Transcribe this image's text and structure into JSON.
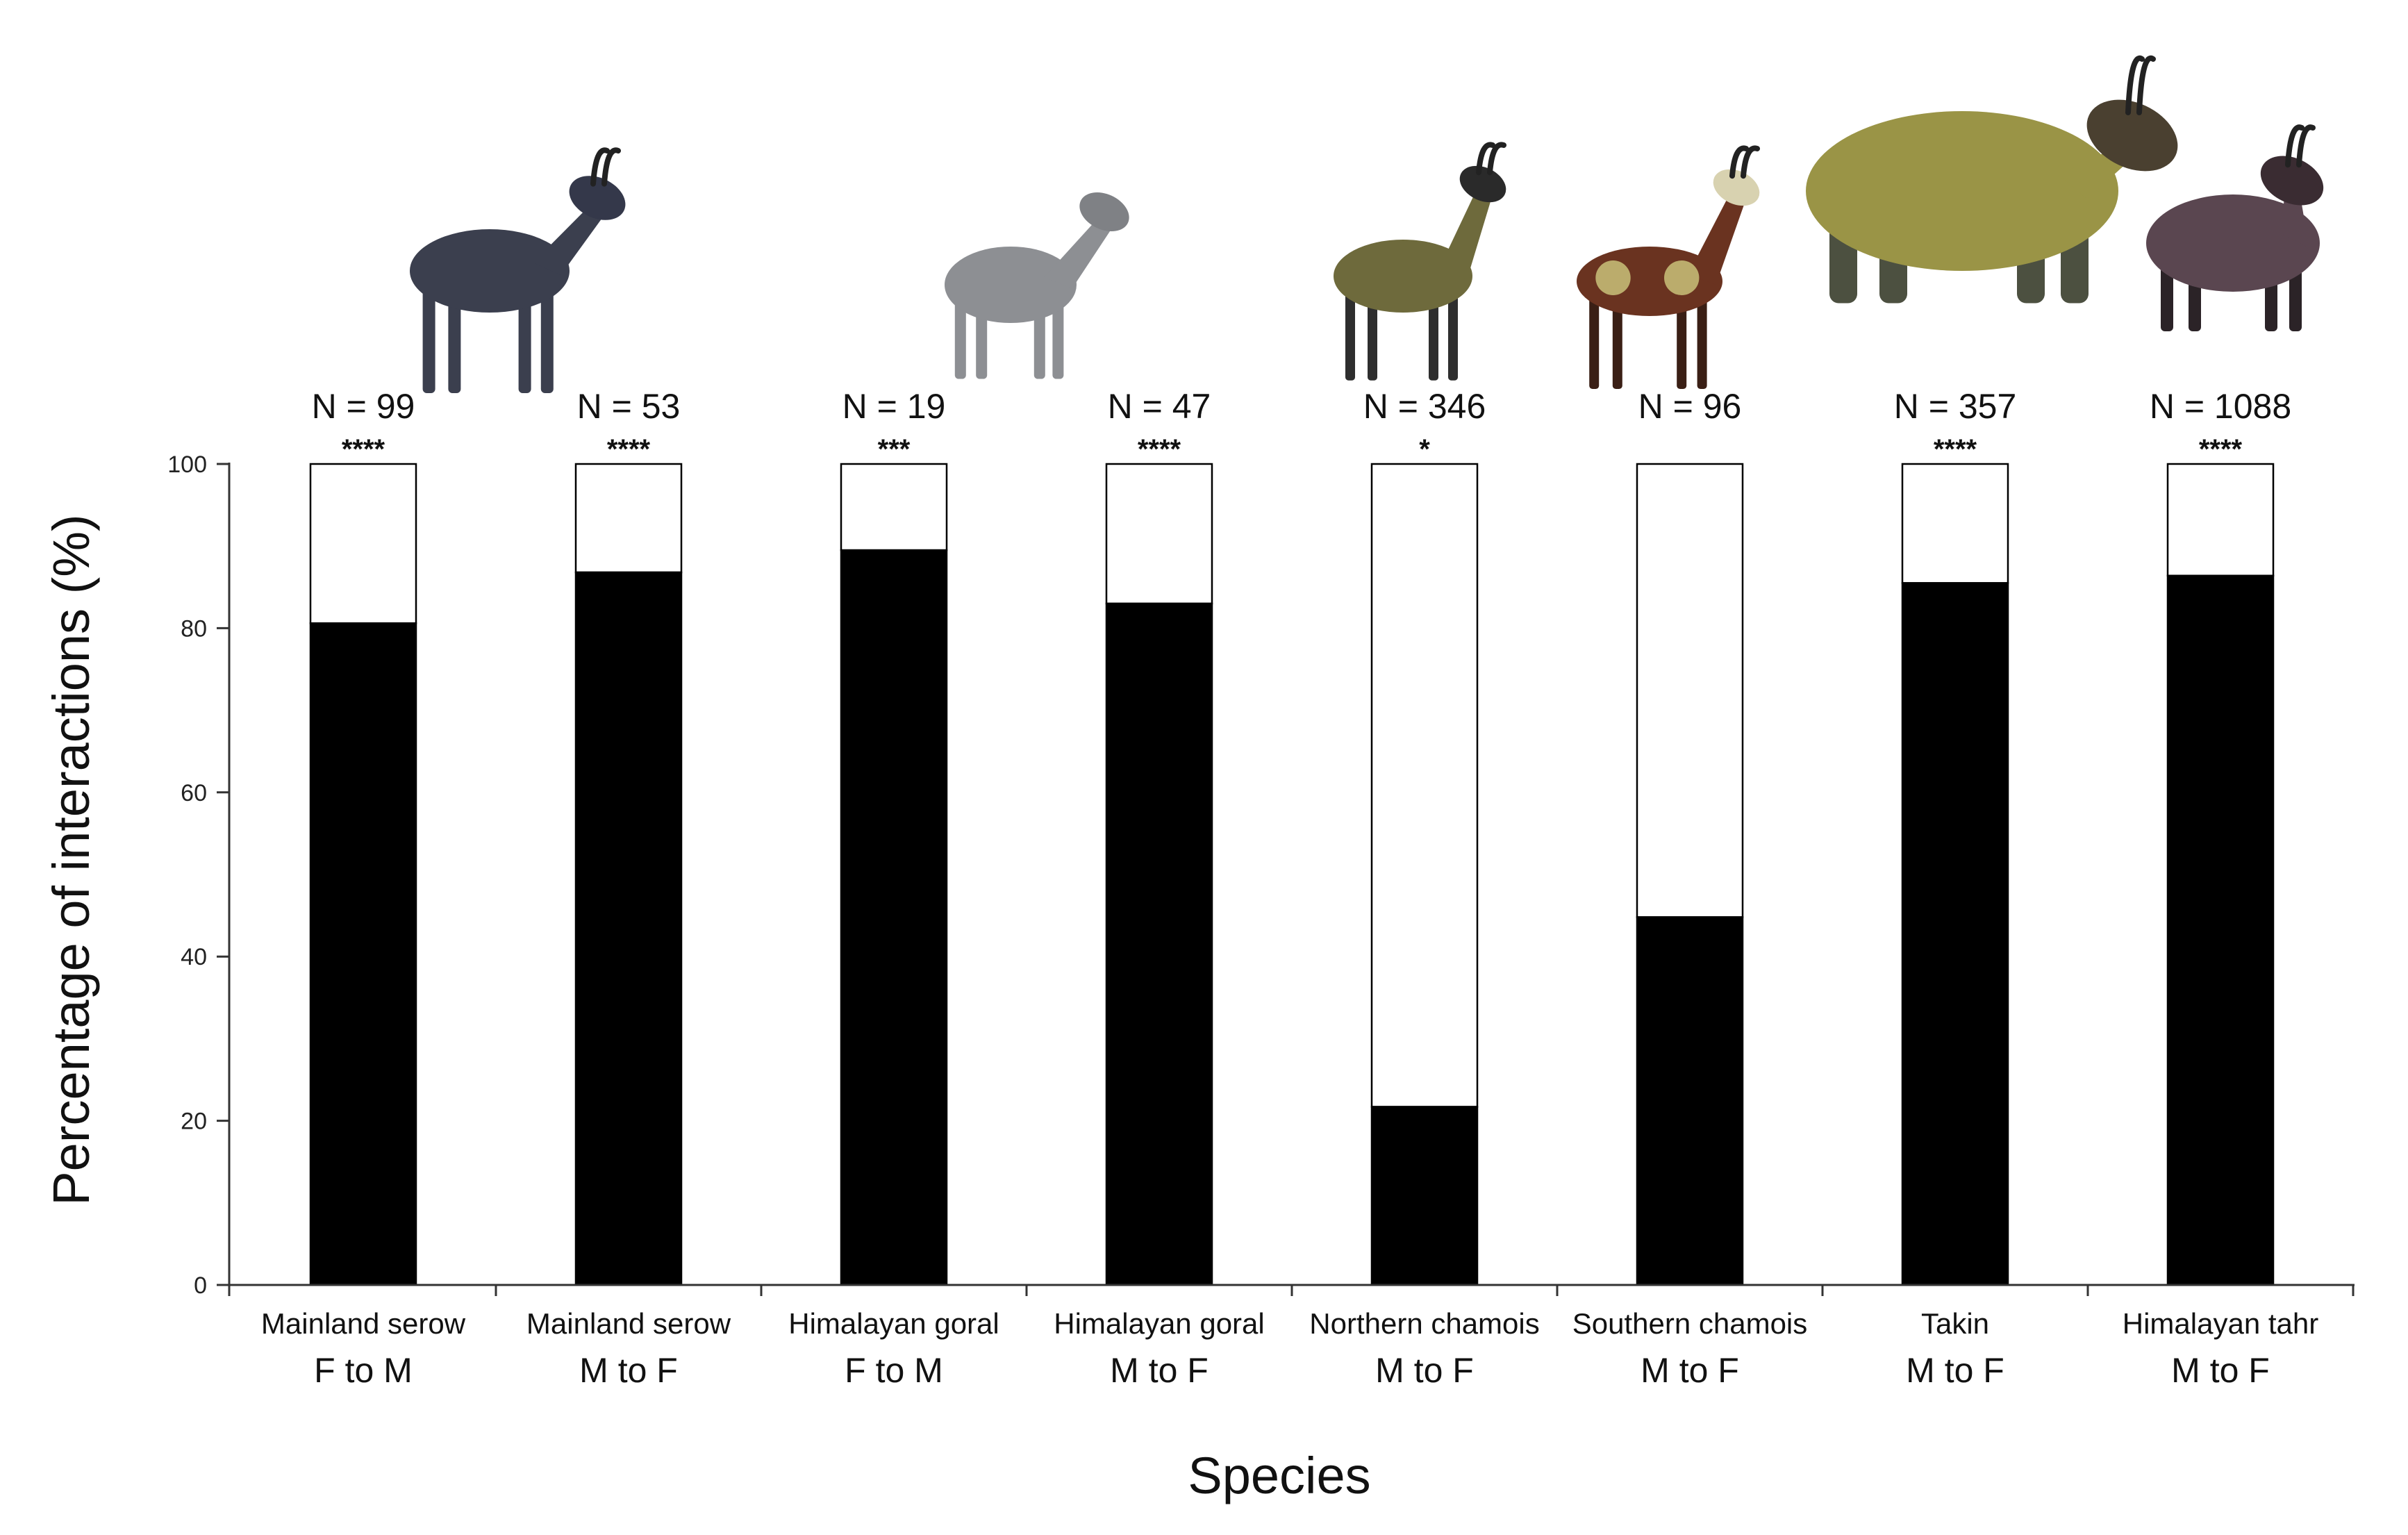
{
  "chart_data": {
    "type": "bar",
    "stacked": true,
    "title": "",
    "xlabel": "Species",
    "ylabel": "Percentage of interactions (%)",
    "ylim": [
      0,
      100
    ],
    "yticks": [
      0,
      20,
      40,
      60,
      80,
      100
    ],
    "grid": false,
    "categories": [
      {
        "species": "Mainland serow",
        "direction": "F to M",
        "n_label": "N = 99",
        "sig": "****",
        "icon": "serow-icon"
      },
      {
        "species": "Mainland serow",
        "direction": "M to F",
        "n_label": "N = 53",
        "sig": "****",
        "icon": ""
      },
      {
        "species": "Himalayan goral",
        "direction": "F to M",
        "n_label": "N = 19",
        "sig": "***",
        "icon": "goral-icon"
      },
      {
        "species": "Himalayan goral",
        "direction": "M to F",
        "n_label": "N = 47",
        "sig": "****",
        "icon": ""
      },
      {
        "species": "Northern chamois",
        "direction": "M to F",
        "n_label": "N = 346",
        "sig": "*",
        "icon": "northern-chamois-icon"
      },
      {
        "species": "Southern chamois",
        "direction": "M to F",
        "n_label": "N = 96",
        "sig": "",
        "icon": "southern-chamois-icon"
      },
      {
        "species": "Takin",
        "direction": "M to F",
        "n_label": "N = 357",
        "sig": "****",
        "icon": "takin-icon"
      },
      {
        "species": "Himalayan tahr",
        "direction": "M to F",
        "n_label": "N = 1088",
        "sig": "****",
        "icon": "tahr-icon"
      }
    ],
    "series": [
      {
        "name": "black",
        "color": "#000000",
        "values": [
          80.6,
          86.8,
          89.5,
          83.0,
          21.7,
          44.8,
          85.5,
          86.4
        ]
      },
      {
        "name": "white",
        "color": "#ffffff",
        "values": [
          19.4,
          13.2,
          10.5,
          17.0,
          78.3,
          55.2,
          14.5,
          13.6
        ]
      }
    ]
  }
}
